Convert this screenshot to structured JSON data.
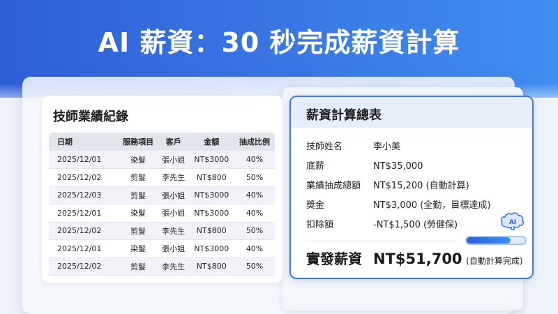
{
  "title": "AI 薪資：30 秒完成薪資計算",
  "records": {
    "title": "技師業績紀錄",
    "columns": [
      "日期",
      "服務項目",
      "客戶",
      "金額",
      "抽成比例"
    ],
    "rows": [
      [
        "2025/12/01",
        "染髮",
        "張小姐",
        "NT$3000",
        "40%"
      ],
      [
        "2025/12/02",
        "剪髮",
        "李先生",
        "NT$800",
        "50%"
      ],
      [
        "2025/12/03",
        "剪髮",
        "張小姐",
        "NT$3000",
        "40%"
      ],
      [
        "2025/12/01",
        "染髮",
        "張小姐",
        "NT$3000",
        "40%"
      ],
      [
        "2025/12/02",
        "剪髮",
        "李先生",
        "NT$800",
        "50%"
      ],
      [
        "2025/12/01",
        "染髮",
        "張小姐",
        "NT$3000",
        "40%"
      ],
      [
        "2025/12/02",
        "剪髮",
        "李先生",
        "NT$800",
        "50%"
      ]
    ]
  },
  "summary": {
    "title": "薪資計算總表",
    "items": [
      {
        "k": "技師姓名",
        "v": "李小美"
      },
      {
        "k": "底薪",
        "v": "NT$35,000"
      },
      {
        "k": "業績抽成總額",
        "v": "NT$15,200 (自動計算)"
      },
      {
        "k": "獎金",
        "v": "NT$3,000 (全勤，目標達成)"
      },
      {
        "k": "扣除額",
        "v": "-NT$1,500 (勞健保)"
      }
    ],
    "total_label": "實發薪資",
    "total_value": "NT$51,700",
    "total_note": "(自動計算完成)",
    "ai_badge": "AI",
    "progress_percent": 75,
    "accent": "#3a7be6"
  }
}
